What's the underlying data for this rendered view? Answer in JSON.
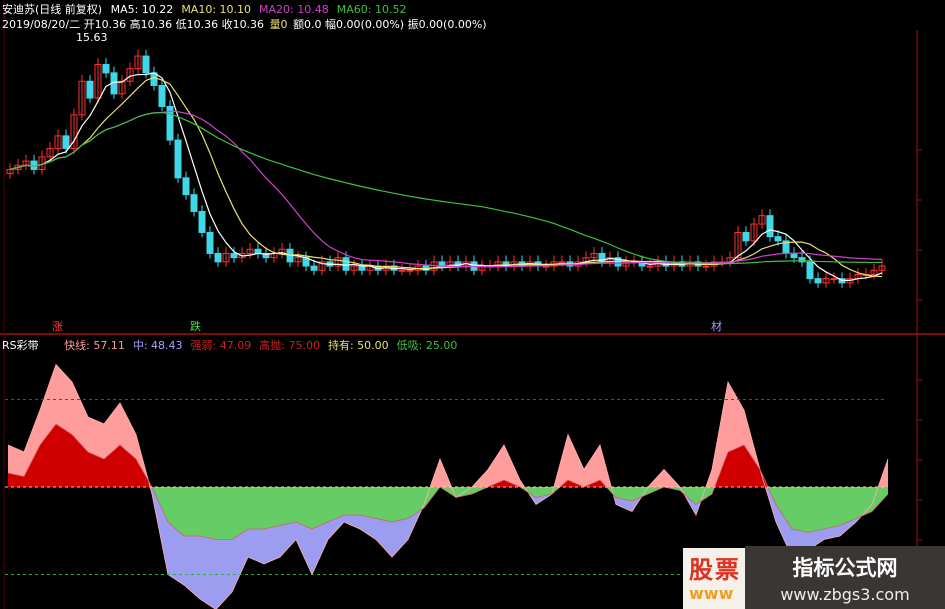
{
  "header": {
    "title": "安迪苏(日线 前复权)",
    "ma": [
      {
        "label": "MA5: 10.22",
        "color": "#ffffff"
      },
      {
        "label": "MA10: 10.10",
        "color": "#e8e070"
      },
      {
        "label": "MA20: 10.48",
        "color": "#d040d0"
      },
      {
        "label": "MA60: 10.52",
        "color": "#40c040"
      }
    ],
    "info": "2019/08/20/二 开10.36 高10.36 低10.36 收10.36",
    "vol_label": "量0",
    "info2": "额0.0 幅0.00(0.00%) 振0.00(0.00%)",
    "high_label": "15.63"
  },
  "markers": {
    "up": "涨",
    "down": "跌",
    "cai": "材"
  },
  "indicator": {
    "name": "RS彩带",
    "items": [
      {
        "label": "快线: 57.11",
        "color": "#ff9a9a"
      },
      {
        "label": "中: 48.43",
        "color": "#a9a0ff"
      },
      {
        "label": "强弱: 47.09",
        "color": "#cc2020"
      },
      {
        "label": "高抛: 75.00",
        "color": "#cc2020"
      },
      {
        "label": "持有: 50.00",
        "color": "#e8e070"
      },
      {
        "label": "低吸: 25.00",
        "color": "#40c040"
      }
    ]
  },
  "watermark": {
    "left_text": "股票",
    "left_sub": "www",
    "site": "指标公式网",
    "url": "www.zbgs3.com"
  },
  "colors": {
    "up": "#ff3030",
    "down": "#40d8e8",
    "axis": "#a01010",
    "pink": "#ff9c9c",
    "red": "#d00000",
    "green": "#66cc66",
    "blue": "#9c9cf0"
  },
  "chart_data": [
    {
      "type": "candlestick",
      "title": "安迪苏(日线 前复权)",
      "high_annotation": 15.63,
      "closes": [
        12.5,
        12.6,
        12.7,
        12.5,
        12.8,
        13.0,
        13.3,
        13.0,
        13.8,
        14.6,
        14.2,
        15.0,
        14.8,
        14.3,
        14.6,
        14.9,
        15.2,
        14.8,
        14.5,
        14.0,
        13.2,
        12.3,
        11.9,
        11.5,
        11.0,
        10.5,
        10.3,
        10.5,
        10.4,
        10.5,
        10.6,
        10.5,
        10.4,
        10.5,
        10.6,
        10.3,
        10.4,
        10.2,
        10.1,
        10.3,
        10.2,
        10.4,
        10.1,
        10.2,
        10.1,
        10.2,
        10.1,
        10.2,
        10.1,
        10.1,
        10.1,
        10.2,
        10.1,
        10.3,
        10.2,
        10.3,
        10.2,
        10.3,
        10.1,
        10.2,
        10.2,
        10.3,
        10.2,
        10.3,
        10.2,
        10.3,
        10.2,
        10.2,
        10.3,
        10.3,
        10.2,
        10.3,
        10.4,
        10.5,
        10.3,
        10.4,
        10.2,
        10.3,
        10.3,
        10.2,
        10.2,
        10.3,
        10.2,
        10.3,
        10.2,
        10.3,
        10.2,
        10.2,
        10.3,
        10.3,
        10.4,
        11.0,
        10.8,
        11.2,
        11.4,
        10.9,
        10.8,
        10.5,
        10.4,
        10.3,
        9.9,
        9.8,
        9.9,
        9.9,
        9.8,
        9.9,
        10.0,
        10.0,
        10.1,
        10.2
      ],
      "moving_averages": [
        5,
        10,
        20,
        60
      ]
    },
    {
      "type": "area",
      "title": "RS彩带",
      "ylim": [
        0,
        100
      ],
      "reference_lines": [
        75,
        50,
        25
      ],
      "series": [
        {
          "name": "快线",
          "values": [
            62,
            60,
            72,
            85,
            80,
            70,
            68,
            74,
            65,
            48,
            25,
            22,
            18,
            15,
            20,
            30,
            28,
            30,
            35,
            25,
            35,
            40,
            38,
            35,
            30,
            35,
            45,
            58,
            47,
            50,
            55,
            62,
            52,
            45,
            48,
            65,
            55,
            62,
            45,
            43,
            50,
            55,
            50,
            42,
            55,
            80,
            72,
            55,
            40,
            30,
            32,
            35,
            36,
            40,
            45,
            58
          ]
        },
        {
          "name": "中",
          "values": [
            54,
            53,
            62,
            68,
            65,
            60,
            58,
            62,
            58,
            50,
            40,
            36,
            36,
            35,
            35,
            38,
            38,
            39,
            40,
            38,
            40,
            42,
            42,
            41,
            40,
            41,
            44,
            50,
            47,
            48,
            50,
            52,
            50,
            47,
            48,
            52,
            50,
            52,
            47,
            46,
            48,
            50,
            49,
            45,
            48,
            60,
            62,
            55,
            45,
            38,
            37,
            38,
            39,
            41,
            43,
            48
          ]
        }
      ]
    }
  ]
}
